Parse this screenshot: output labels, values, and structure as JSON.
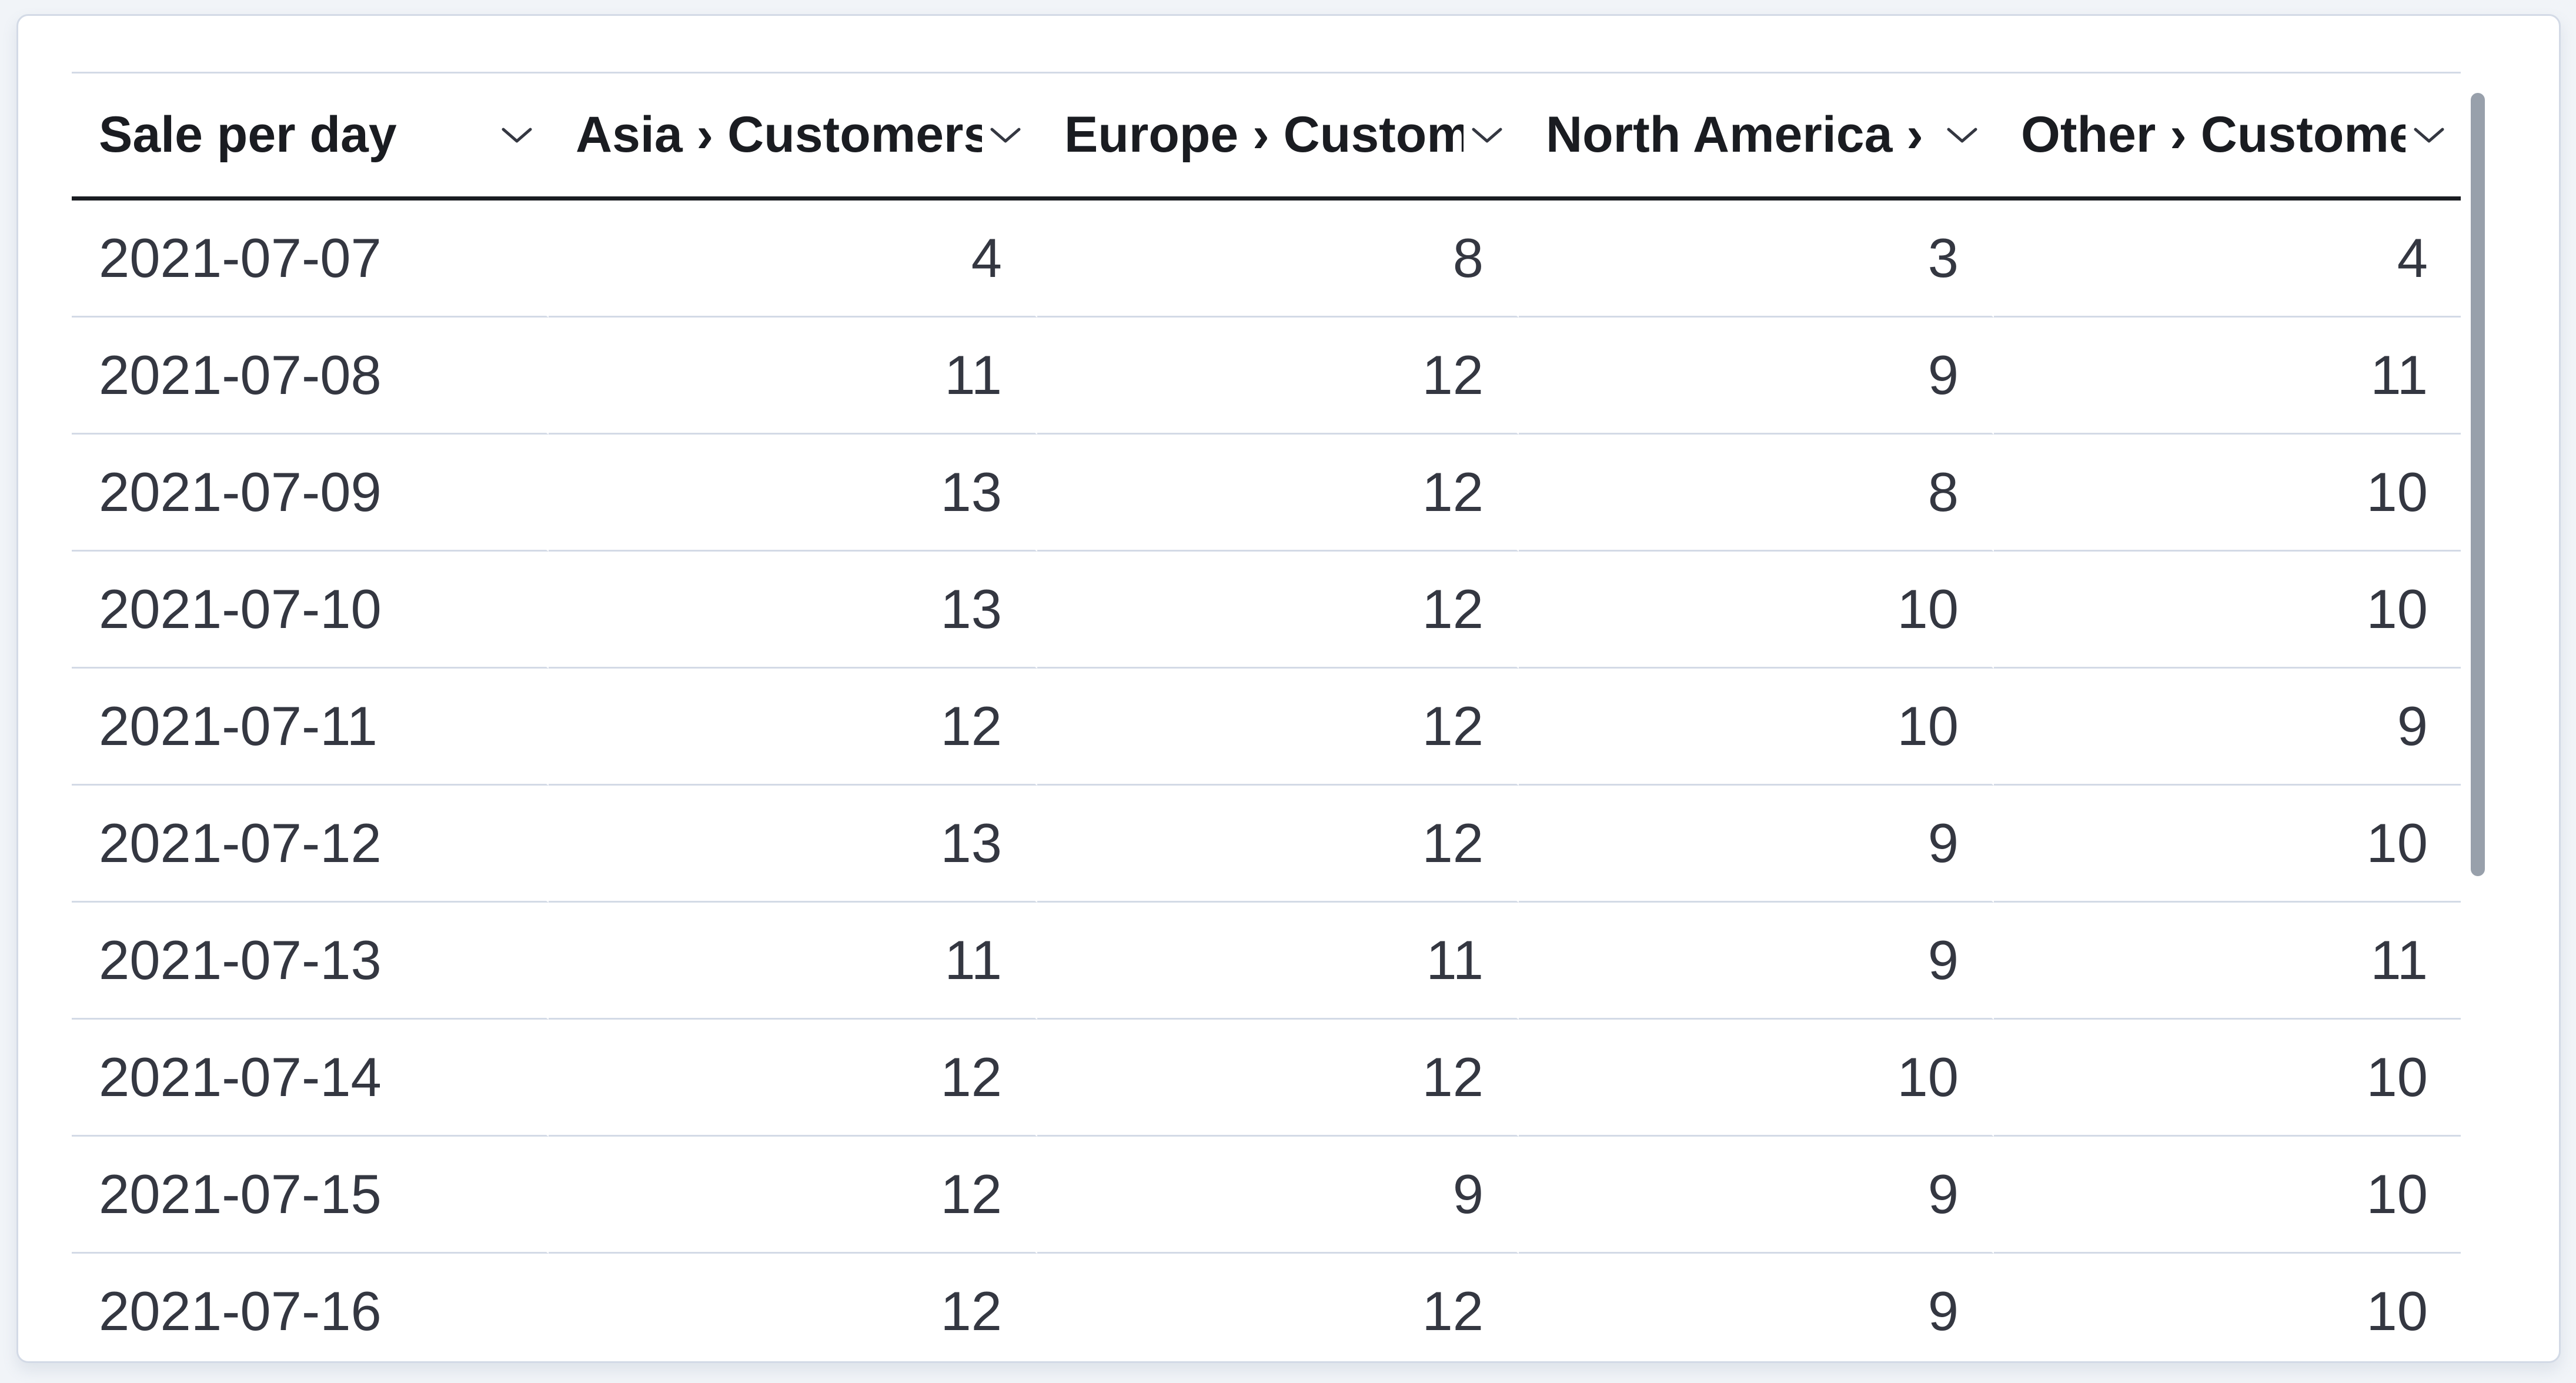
{
  "panel": {
    "type": "data-grid",
    "colors": {
      "page_background": "#f1f4f8",
      "panel_background": "#ffffff",
      "panel_border": "#d3dae6",
      "row_divider": "#d3dae6",
      "header_underline": "#1a1c21",
      "header_text": "#1a1c21",
      "cell_text": "#343741",
      "scrollbar_thumb": "#98a0ab"
    },
    "scrollbar": {
      "visible": true,
      "orientation": "vertical"
    }
  },
  "table": {
    "columns": [
      {
        "id": "date",
        "label": "Sale per day",
        "align": "left",
        "sortable": true,
        "icon": "chevron-down"
      },
      {
        "id": "asia",
        "label": "Asia › Customers",
        "align": "right",
        "sortable": true,
        "icon": "chevron-down"
      },
      {
        "id": "europe",
        "label": "Europe › Customers",
        "align": "right",
        "sortable": true,
        "icon": "chevron-down"
      },
      {
        "id": "na",
        "label": "North America › Customers",
        "align": "right",
        "sortable": true,
        "icon": "chevron-down"
      },
      {
        "id": "other",
        "label": "Other › Customers",
        "align": "right",
        "sortable": true,
        "icon": "chevron-down"
      }
    ],
    "rows": [
      {
        "date": "2021-07-07",
        "values": [
          4,
          8,
          3,
          4
        ]
      },
      {
        "date": "2021-07-08",
        "values": [
          11,
          12,
          9,
          11
        ]
      },
      {
        "date": "2021-07-09",
        "values": [
          13,
          12,
          8,
          10
        ]
      },
      {
        "date": "2021-07-10",
        "values": [
          13,
          12,
          10,
          10
        ]
      },
      {
        "date": "2021-07-11",
        "values": [
          12,
          12,
          10,
          9
        ]
      },
      {
        "date": "2021-07-12",
        "values": [
          13,
          12,
          9,
          10
        ]
      },
      {
        "date": "2021-07-13",
        "values": [
          11,
          11,
          9,
          11
        ]
      },
      {
        "date": "2021-07-14",
        "values": [
          12,
          12,
          10,
          10
        ]
      },
      {
        "date": "2021-07-15",
        "values": [
          12,
          9,
          9,
          10
        ]
      },
      {
        "date": "2021-07-16",
        "values": [
          12,
          12,
          9,
          10
        ]
      }
    ]
  }
}
